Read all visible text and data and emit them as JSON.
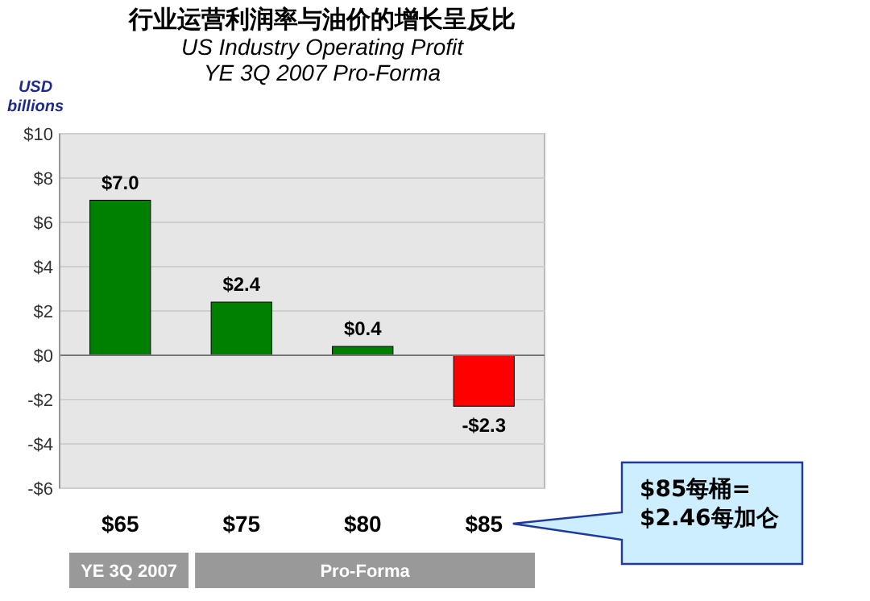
{
  "chart_data": {
    "type": "bar",
    "title": "行业运营利润率与油价的增长呈反比",
    "subtitle": "US Industry Operating Profit\nYE 3Q 2007 Pro-Forma",
    "ylabel": "USD billions",
    "categories": [
      "$65",
      "$75",
      "$80",
      "$85"
    ],
    "values": [
      7.0,
      2.4,
      0.4,
      -2.3
    ],
    "colors": [
      "#008000",
      "#008000",
      "#008000",
      "#ff0000"
    ],
    "value_labels": [
      "$7.0",
      "$2.4",
      "$0.4",
      "-$2.3"
    ],
    "ylim": [
      -6,
      10
    ],
    "yticks": [
      {
        "value": 10,
        "label": "$10"
      },
      {
        "value": 8,
        "label": "$8"
      },
      {
        "value": 6,
        "label": "$6"
      },
      {
        "value": 4,
        "label": "$4"
      },
      {
        "value": 2,
        "label": "$2"
      },
      {
        "value": 0,
        "label": "$0"
      },
      {
        "value": -2,
        "label": "-$2"
      },
      {
        "value": -4,
        "label": "-$4"
      },
      {
        "value": -6,
        "label": "-$6"
      }
    ],
    "grid": "y",
    "annotations": [
      "YE 3Q 2007",
      "Pro-Forma",
      "$85每桶=\n$2.46每加仑"
    ]
  }
}
